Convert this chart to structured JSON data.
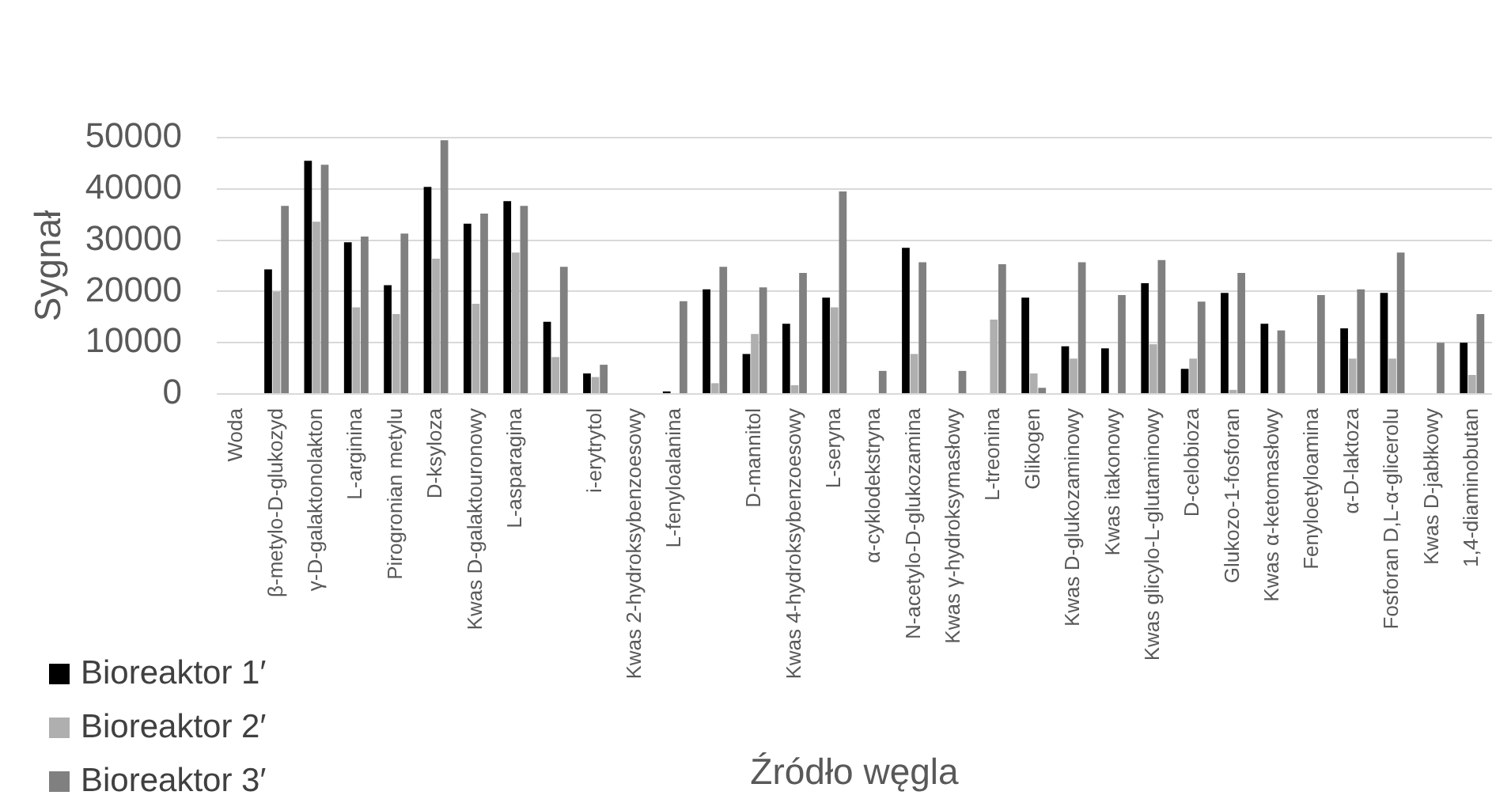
{
  "chart_data": {
    "type": "bar",
    "ylabel": "Sygnał",
    "xlabel": "Źródło węgla",
    "categories": [
      "Woda",
      "β-metylo-D-glukozyd",
      "γ-D-galaktonolakton",
      "L-arginina",
      "Pirogronian metylu",
      "D-ksyloza",
      "Kwas D-galaktouronowy",
      "L-asparagina",
      null,
      "i-erytrytol",
      "Kwas 2-hydroksybenzoesowy",
      "L-fenyloalanina",
      null,
      "D-mannitol",
      "Kwas 4-hydroksybenzoesowy",
      "L-seryna",
      "α-cyklodekstryna",
      "N-acetylo-D-glukozamina",
      "Kwas γ-hydroksymasłowy",
      "L-treonina",
      "Glikogen",
      "Kwas D-glukozaminowy",
      "Kwas itakonowy",
      "Kwas glicylo-L-glutaminowy",
      "D-celobioza",
      "Glukozo-1-fosforan",
      "Kwas α-ketomasłowy",
      "Fenyloetyloamina",
      "α-D-laktoza",
      "Fosforan D,L-α-glicerolu",
      "Kwas D-jabłkowy",
      "1,4-diaminobutan"
    ],
    "series": [
      {
        "name": "Bioreaktor 1′",
        "color": "#000000",
        "values": [
          0,
          24300,
          45500,
          29600,
          21200,
          40400,
          33200,
          37600,
          14100,
          4000,
          0,
          500,
          20400,
          7800,
          13700,
          18800,
          0,
          28500,
          0,
          0,
          18800,
          9300,
          8900,
          21600,
          4900,
          19700,
          13700,
          0,
          12800,
          19700,
          0,
          10000
        ]
      },
      {
        "name": "Bioreaktor 2′",
        "color": "#afafaf",
        "values": [
          0,
          20000,
          33600,
          16900,
          15600,
          26400,
          17600,
          27600,
          7200,
          3300,
          0,
          0,
          2100,
          11700,
          1700,
          16900,
          0,
          7800,
          0,
          14500,
          4000,
          6900,
          0,
          9700,
          6900,
          800,
          0,
          0,
          6900,
          6900,
          0,
          3700
        ]
      },
      {
        "name": "Bioreaktor 3′",
        "color": "#808080",
        "values": [
          0,
          36700,
          44700,
          30700,
          31300,
          49500,
          35200,
          36700,
          24800,
          5700,
          0,
          18100,
          24800,
          20800,
          23600,
          39500,
          4500,
          25700,
          4500,
          25300,
          1200,
          25700,
          19300,
          26100,
          18000,
          23600,
          12400,
          19300,
          20400,
          27600,
          10000,
          15600
        ]
      }
    ],
    "ylim": [
      0,
      50000
    ],
    "yticks": [
      0,
      10000,
      20000,
      30000,
      40000,
      50000
    ],
    "grid": "y",
    "legend": "bottom left"
  }
}
